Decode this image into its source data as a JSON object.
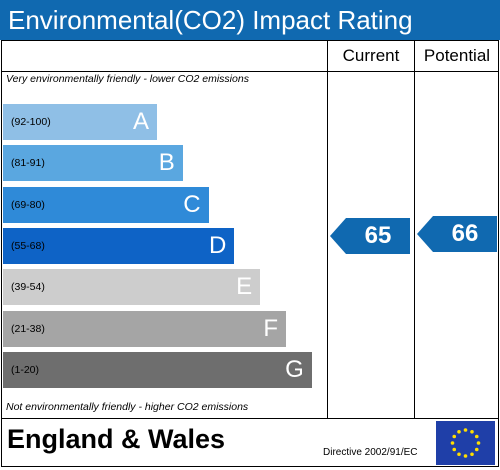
{
  "title": "Environmental(CO2) Impact Rating",
  "columns": {
    "current": "Current",
    "potential": "Potential"
  },
  "top_note": "Very environmentally friendly - lower CO2 emissions",
  "bottom_note": "Not environmentally friendly - higher CO2 emissions",
  "footer": {
    "region": "England & Wales",
    "directive": "Directive 2002/91/EC"
  },
  "colors": {
    "title_bg": "#1069b0",
    "arrow": "#1069b0",
    "bands": [
      "#8fbfe6",
      "#5aa7e0",
      "#2f8ad8",
      "#0e63c6",
      "#cdcdcd",
      "#a5a5a5",
      "#6e6e6e"
    ],
    "eu_flag": "#1f3fa8",
    "eu_stars": "#ffde00"
  },
  "chart_data": {
    "type": "bar",
    "title": "Environmental(CO2) Impact Rating",
    "categories": [
      "A",
      "B",
      "C",
      "D",
      "E",
      "F",
      "G"
    ],
    "ranges": [
      "(92-100)",
      "(81-91)",
      "(69-80)",
      "(55-68)",
      "(39-54)",
      "(21-38)",
      "(1-20)"
    ],
    "current": {
      "label": "Current",
      "value": 65,
      "band": "D"
    },
    "potential": {
      "label": "Potential",
      "value": 66,
      "band": "D"
    }
  }
}
